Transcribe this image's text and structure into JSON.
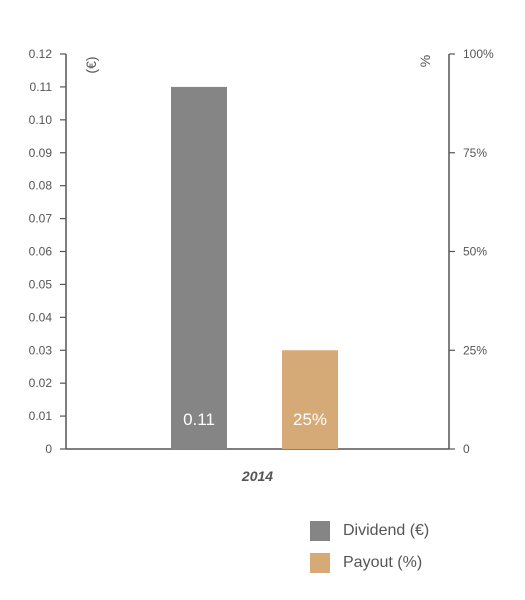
{
  "chart_data": {
    "type": "bar",
    "categories": [
      "2014"
    ],
    "left_axis": {
      "unit_label": "(€)",
      "ticks": [
        "0",
        "0.01",
        "0.02",
        "0.03",
        "0.04",
        "0.05",
        "0.06",
        "0.07",
        "0.08",
        "0.09",
        "0.10",
        "0.11",
        "0.12"
      ],
      "ylim": [
        0,
        0.12
      ]
    },
    "right_axis": {
      "unit_label": "%",
      "ticks": [
        "0",
        "25%",
        "50%",
        "75%",
        "100%"
      ],
      "ylim": [
        0,
        100
      ]
    },
    "series": [
      {
        "name": "Dividend (€)",
        "axis": "left",
        "values": [
          0.11
        ],
        "labels": [
          "0.11"
        ],
        "color": "#858585"
      },
      {
        "name": "Payout (%)",
        "axis": "right",
        "values": [
          25
        ],
        "labels": [
          "25%"
        ],
        "color": "#d6aa76"
      }
    ],
    "legend_position": "bottom-right",
    "grid": false
  },
  "colors": {
    "axis": "#555555",
    "text": "#555555"
  }
}
